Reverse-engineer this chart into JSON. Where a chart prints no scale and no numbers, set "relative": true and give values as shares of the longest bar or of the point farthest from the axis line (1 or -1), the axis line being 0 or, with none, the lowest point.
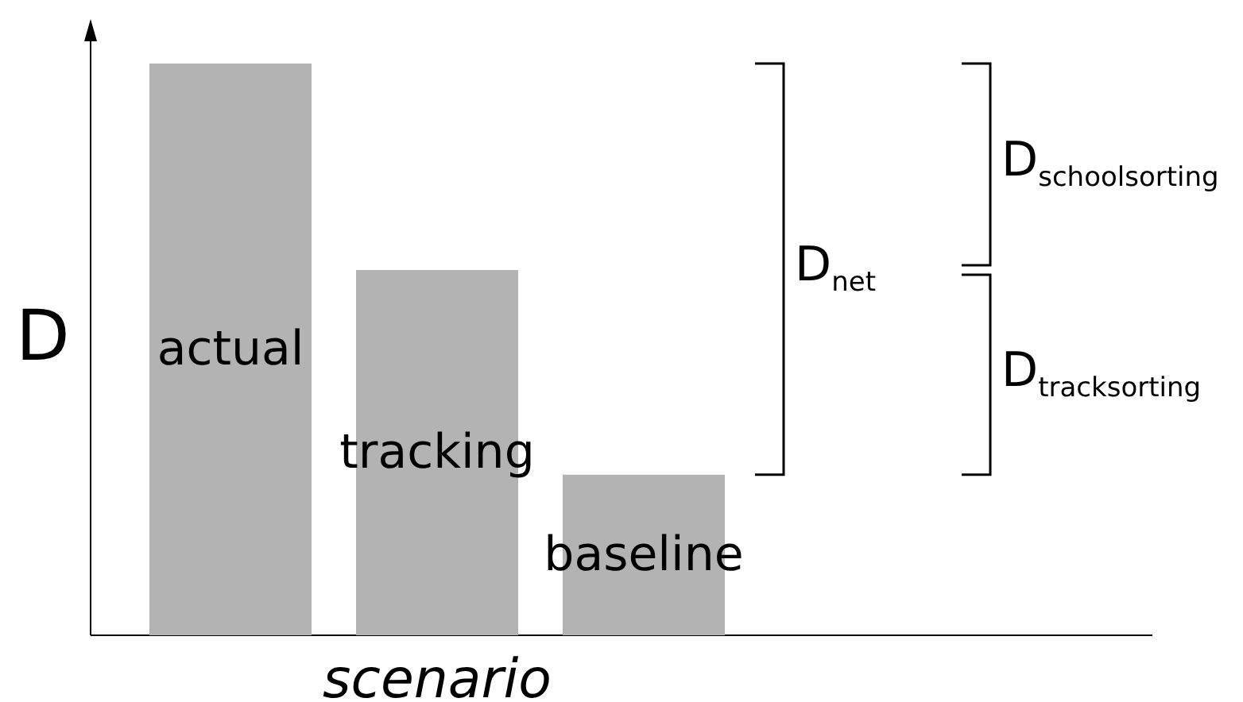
{
  "chart_data": {
    "type": "bar",
    "relative": true,
    "tick_labels": false,
    "xlabel": "scenario",
    "ylabel": "D",
    "categories": [
      "actual",
      "tracking",
      "baseline"
    ],
    "values": [
      1,
      0.639,
      0.281
    ],
    "color": "#b3b3b3",
    "annotations": [
      "D$_{net}$",
      "D$_{schoolsorting}$",
      "D$_{tracksorting}$"
    ]
  }
}
